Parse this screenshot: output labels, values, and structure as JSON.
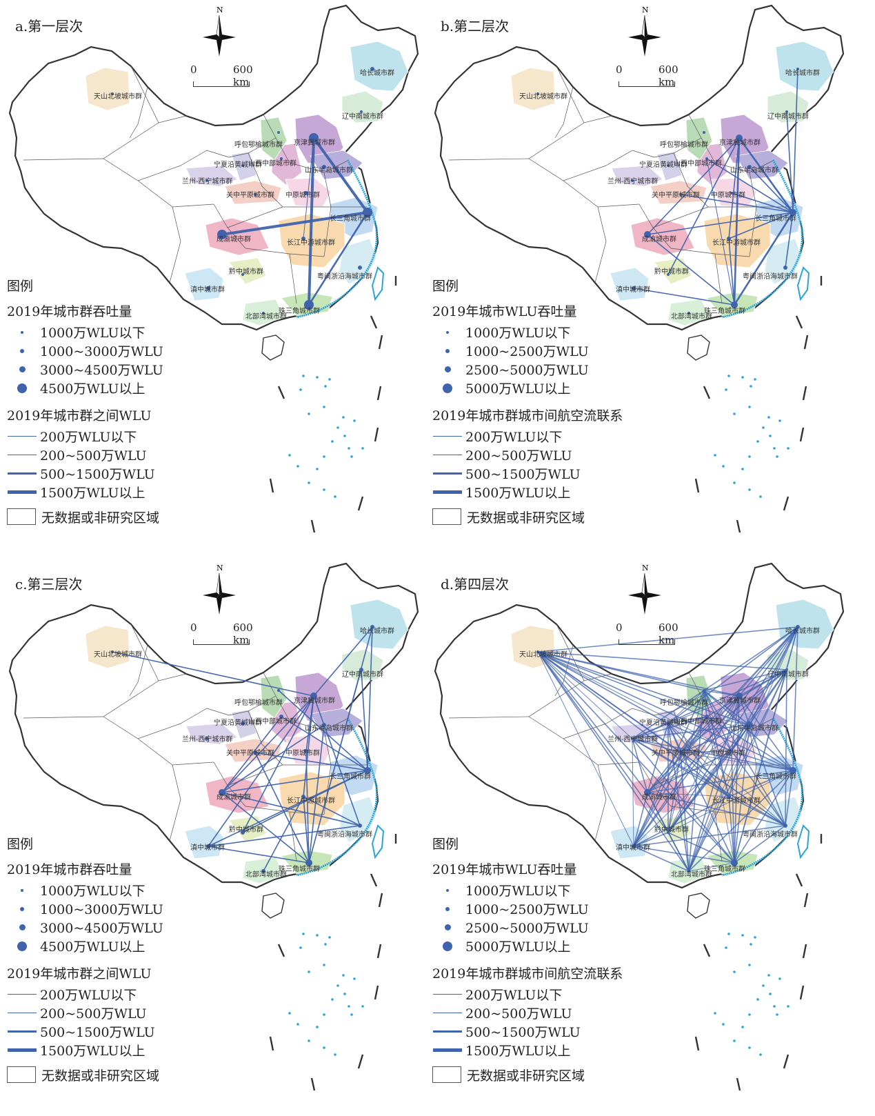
{
  "panels": [
    {
      "id": "a",
      "title": "a.第一层次",
      "legend": {
        "heading": "图例",
        "node_title": "2019年城市群吞吐量",
        "node_classes": [
          "1000万WLU以下",
          "1000~3000万WLU",
          "3000~4500万WLU",
          "4500万WLU以上"
        ],
        "edge_title": "2019年城市群之间WLU",
        "edge_classes": [
          "200万WLU以下",
          "200~500万WLU",
          "500~1500万WLU",
          "1500万WLU以上"
        ],
        "nodata": "无数据或非研究区域"
      }
    },
    {
      "id": "b",
      "title": "b.第二层次",
      "legend": {
        "heading": "图例",
        "node_title": "2019年城市WLU吞吐量",
        "node_classes": [
          "1000万WLU以下",
          "1000~2500万WLU",
          "2500~5000万WLU",
          "5000万WLU以上"
        ],
        "edge_title": "2019年城市群城市间航空流联系",
        "edge_classes": [
          "200万WLU以下",
          "200~500万WLU",
          "500~1500万WLU",
          "1500万WLU以上"
        ],
        "nodata": "无数据或非研究区域"
      }
    },
    {
      "id": "c",
      "title": "c.第三层次",
      "legend": {
        "heading": "图例",
        "node_title": "2019年城市群吞吐量",
        "node_classes": [
          "1000万WLU以下",
          "1000~3000万WLU",
          "3000~4500万WLU",
          "4500万WLU以上"
        ],
        "edge_title": "2019年城市群之间WLU",
        "edge_classes": [
          "200万WLU以下",
          "200~500万WLU",
          "500~1500万WLU",
          "1500万WLU以上"
        ],
        "nodata": "无数据或非研究区域"
      }
    },
    {
      "id": "d",
      "title": "d.第四层次",
      "legend": {
        "heading": "图例",
        "node_title": "2019年城市WLU吞吐量",
        "node_classes": [
          "1000万WLU以下",
          "1000~2500万WLU",
          "2500~5000万WLU",
          "5000万WLU以上"
        ],
        "edge_title": "2019年城市群城市间航空流联系",
        "edge_classes": [
          "200万WLU以下",
          "200~500万WLU",
          "500~1500万WLU",
          "1500万WLU以上"
        ],
        "nodata": "无数据或非研究区域"
      }
    }
  ],
  "north_label": "N",
  "scale": {
    "zero": "0",
    "distance": "600 km"
  },
  "regions": [
    {
      "name": "天山北坡城市群",
      "color": "#f6e6cc"
    },
    {
      "name": "哈长城市群",
      "color": "#bfe3ec"
    },
    {
      "name": "辽中南城市群",
      "color": "#d6ecd8"
    },
    {
      "name": "京津冀城市群",
      "color": "#c7a7d6"
    },
    {
      "name": "山东半岛城市群",
      "color": "#b8b0dc"
    },
    {
      "name": "山西中部城市群",
      "color": "#e2b8d8"
    },
    {
      "name": "呼包鄂榆城市群",
      "color": "#b9dcb6"
    },
    {
      "name": "宁夏沿黄城市群",
      "color": "#d3d0ea"
    },
    {
      "name": "兰州-西宁城市群",
      "color": "#d9d2ea"
    },
    {
      "name": "关中平原城市群",
      "color": "#f3cfc6"
    },
    {
      "name": "中原城市群",
      "color": "#f5d7e5"
    },
    {
      "name": "长三角城市群",
      "color": "#c2dbf2"
    },
    {
      "name": "长江中游城市群",
      "color": "#f9d9ae"
    },
    {
      "name": "成渝城市群",
      "color": "#f0b6c6"
    },
    {
      "name": "黔中城市群",
      "color": "#e6efc4"
    },
    {
      "name": "滇中城市群",
      "color": "#cde7f4"
    },
    {
      "name": "粤闽浙沿海城市群",
      "color": "#d4ecf2"
    },
    {
      "name": "珠三角城市群",
      "color": "#c6e6b8"
    },
    {
      "name": "北部湾城市群",
      "color": "#d8efd8"
    }
  ],
  "colors": {
    "flow": "#3f63ad",
    "node": "#3f63ad",
    "coast": "#2aa3d8"
  }
}
